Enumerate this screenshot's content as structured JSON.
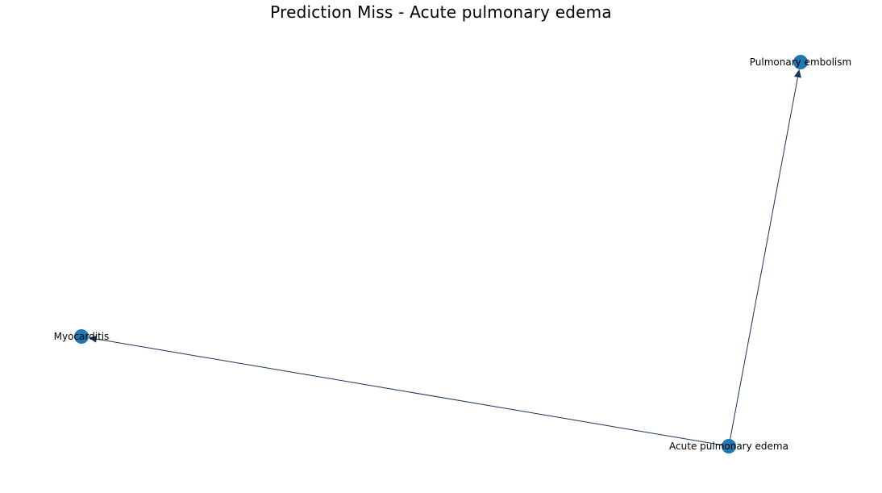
{
  "title": "Prediction Miss - Acute pulmonary edema",
  "colors": {
    "node": "#1f77b4",
    "edge": "#17335c",
    "label": "#000000"
  },
  "graph": {
    "nodes": [
      {
        "id": "apo",
        "label": "Acute pulmonary edema"
      },
      {
        "id": "pe",
        "label": "Pulmonary embolism"
      },
      {
        "id": "myo",
        "label": "Myocarditis"
      }
    ],
    "edges": [
      {
        "source": "apo",
        "target": "pe"
      },
      {
        "source": "apo",
        "target": "myo"
      }
    ]
  }
}
